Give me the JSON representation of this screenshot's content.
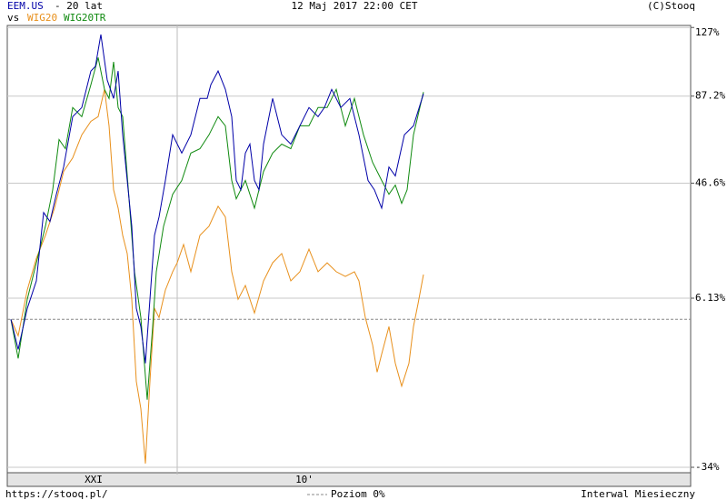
{
  "chart_data": {
    "type": "line",
    "subtitle": "- 20 lat",
    "compare_label": "vs",
    "date": "12 Maj 2017 22:00 CET",
    "copyright": "(C)Stooq",
    "url": "https://stooq.pl/",
    "interval": "Interwal Miesieczny",
    "log_scale": true,
    "grid": true,
    "zero_line": {
      "value": 0,
      "label": "Poziom 0%"
    },
    "xlim": [
      -4,
      748
    ],
    "xticks": [
      {
        "value": 91,
        "label": "XXI"
      },
      {
        "value": 323,
        "label": "10'"
      }
    ],
    "ylim": [
      -35,
      128.3
    ],
    "yticks": [
      {
        "value": -34,
        "label": "-34%"
      },
      {
        "value": 6.13,
        "label": "6.13%"
      },
      {
        "value": 46.6,
        "label": "46.6%"
      },
      {
        "value": 87.2,
        "label": "87.2%"
      },
      {
        "value": 127,
        "label": "127%"
      }
    ],
    "series": [
      {
        "name": "EEM.US",
        "color": "#0000a8",
        "x": [
          0,
          8,
          18,
          28,
          36,
          43,
          50,
          58,
          68,
          78,
          88,
          93,
          99,
          106,
          113,
          118,
          123,
          128,
          133,
          138,
          143,
          148,
          153,
          158,
          163,
          170,
          178,
          188,
          198,
          208,
          216,
          220,
          228,
          236,
          243,
          248,
          253,
          258,
          263,
          268,
          273,
          278,
          288,
          298,
          308,
          318,
          328,
          338,
          345,
          353,
          363,
          373,
          383,
          393,
          400,
          408,
          416,
          423,
          433,
          443,
          454
        ],
        "values": [
          0,
          -8.1,
          3.1,
          11.4,
          35.0,
          31.6,
          42.1,
          53.4,
          76.7,
          81.3,
          100.9,
          103.5,
          122.6,
          95.8,
          86.0,
          100.9,
          67.9,
          47.7,
          29.9,
          3.1,
          -2.0,
          -11.6,
          5.8,
          26.6,
          33.3,
          47.7,
          67.9,
          59.5,
          67.9,
          86.0,
          86.0,
          93.3,
          100.9,
          90.8,
          76.7,
          47.7,
          43.9,
          59.5,
          63.6,
          47.7,
          43.9,
          63.6,
          86.0,
          67.9,
          63.6,
          72.2,
          81.3,
          76.7,
          81.3,
          90.8,
          81.3,
          86.0,
          67.9,
          47.7,
          43.9,
          36.7,
          53.4,
          49.6,
          67.9,
          72.2,
          88.4
        ]
      },
      {
        "name": "WIG20",
        "color": "#e8901c",
        "x": [
          0,
          8,
          18,
          28,
          38,
          48,
          58,
          68,
          78,
          88,
          96,
          103,
          108,
          113,
          118,
          123,
          128,
          133,
          138,
          143,
          148,
          153,
          158,
          163,
          170,
          178,
          183,
          190,
          198,
          208,
          218,
          228,
          236,
          243,
          250,
          258,
          268,
          278,
          288,
          298,
          308,
          318,
          328,
          338,
          348,
          358,
          368,
          378,
          383,
          390,
          398,
          403,
          408,
          416,
          423,
          430,
          438,
          443,
          448,
          454
        ],
        "values": [
          0,
          -4.5,
          8.6,
          18.7,
          26.6,
          36.7,
          51.5,
          57.4,
          67.9,
          74.4,
          76.7,
          90.8,
          72.2,
          43.9,
          36.7,
          26.6,
          20.3,
          5.8,
          -16.0,
          -22.2,
          -33.3,
          -16.0,
          3.1,
          0.5,
          8.6,
          14.3,
          17.2,
          23.4,
          14.3,
          26.6,
          29.9,
          37.4,
          33.3,
          14.3,
          5.8,
          10.0,
          1.8,
          11.4,
          17.2,
          20.3,
          11.4,
          14.3,
          21.8,
          14.3,
          17.2,
          14.3,
          12.8,
          14.3,
          11.4,
          0.5,
          -6.9,
          -13.8,
          -9.3,
          -2.0,
          -11.6,
          -17.1,
          -11.6,
          -2.0,
          4.5,
          13.4
        ]
      },
      {
        "name": "WIG20TR",
        "color": "#108a10",
        "x": [
          0,
          8,
          18,
          28,
          38,
          46,
          53,
          60,
          68,
          78,
          88,
          96,
          103,
          108,
          113,
          118,
          123,
          130,
          136,
          143,
          150,
          156,
          160,
          168,
          178,
          188,
          198,
          208,
          218,
          228,
          236,
          243,
          248,
          258,
          268,
          278,
          288,
          298,
          308,
          318,
          328,
          338,
          348,
          358,
          368,
          378,
          388,
          398,
          408,
          416,
          423,
          430,
          436,
          443,
          450,
          454
        ],
        "values": [
          0,
          -10.4,
          5.8,
          17.2,
          29.9,
          43.9,
          65.7,
          61.5,
          81.3,
          76.7,
          93.3,
          108.7,
          90.8,
          86.0,
          106.1,
          81.3,
          76.7,
          40.3,
          14.3,
          0.5,
          -20.2,
          -2.0,
          14.3,
          29.9,
          42.1,
          47.7,
          59.5,
          61.5,
          67.9,
          76.7,
          72.2,
          47.7,
          40.3,
          47.7,
          36.7,
          51.5,
          59.5,
          63.6,
          61.5,
          72.2,
          72.2,
          81.3,
          81.3,
          90.8,
          72.2,
          86.0,
          67.9,
          55.4,
          47.7,
          42.1,
          45.8,
          38.5,
          43.9,
          67.9,
          81.3,
          89.4
        ]
      }
    ]
  }
}
